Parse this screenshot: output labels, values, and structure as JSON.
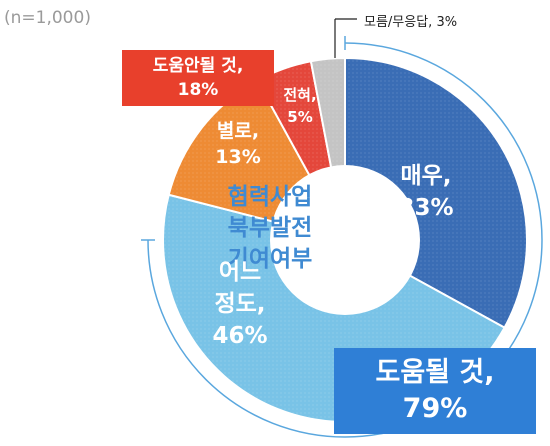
{
  "sample_note": "(n=1,000)",
  "center_title": [
    "협력사업",
    "북부발전",
    "기여여부"
  ],
  "summary": {
    "negative_label": "도움안될 것,",
    "negative_value": "18%",
    "positive_label": "도움될 것,",
    "positive_value": "79%"
  },
  "callout": "모름/무응답, 3%",
  "chart_data": {
    "type": "pie",
    "donut": true,
    "start": "12 o'clock, clockwise",
    "slices": [
      {
        "label_line1": "매우,",
        "label_line2": "33%",
        "value": 33,
        "color": "#3a6db5"
      },
      {
        "label_line1": "어느",
        "label_line2": "정도,",
        "label_line3": "46%",
        "value": 46,
        "color": "#79c3e7"
      },
      {
        "label_line1": "별로,",
        "label_line2": "13%",
        "value": 13,
        "color": "#ee8b34"
      },
      {
        "label_line1": "전혀,",
        "label_line2": "5%",
        "value": 5,
        "color": "#e4473b"
      },
      {
        "label_line1": "모름/무응답, 3%",
        "value": 3,
        "color": "#c4c4c4"
      }
    ]
  }
}
